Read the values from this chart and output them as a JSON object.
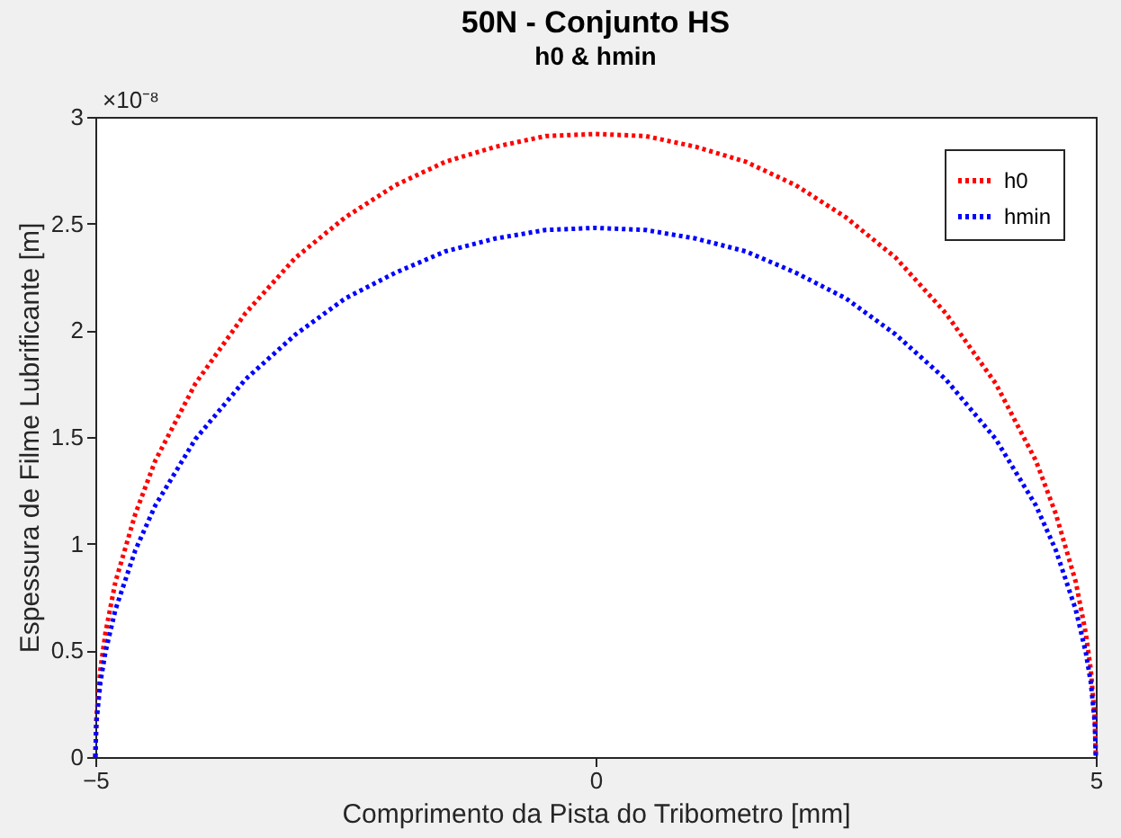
{
  "chart_data": {
    "type": "line",
    "title": "50N - Conjunto HS",
    "subtitle": "h0 & hmin",
    "xlabel": "Comprimento da Pista do Tribometro [mm]",
    "ylabel": "Espessura de Filme Lubrificante [m]",
    "annotations": [
      "×10⁻⁸"
    ],
    "x": [
      -5,
      -4.99,
      -4.95,
      -4.9,
      -4.8,
      -4.6,
      -4.4,
      -4,
      -3.5,
      -3,
      -2.5,
      -2,
      -1.5,
      -1,
      -0.5,
      0,
      0.5,
      1,
      1.5,
      2,
      2.5,
      3,
      3.5,
      4,
      4.4,
      4.6,
      4.8,
      4.9,
      4.95,
      4.99,
      5
    ],
    "series": [
      {
        "name": "h0",
        "color": "#ff0000",
        "values": [
          0,
          0.18,
          0.41,
          0.58,
          0.82,
          1.14,
          1.39,
          1.75,
          2.08,
          2.34,
          2.53,
          2.68,
          2.79,
          2.86,
          2.91,
          2.92,
          2.91,
          2.86,
          2.79,
          2.68,
          2.53,
          2.34,
          2.08,
          1.75,
          1.39,
          1.14,
          0.82,
          0.58,
          0.41,
          0.18,
          0
        ]
      },
      {
        "name": "hmin",
        "color": "#0000ff",
        "values": [
          0,
          0.16,
          0.35,
          0.49,
          0.69,
          0.97,
          1.18,
          1.49,
          1.77,
          1.98,
          2.15,
          2.27,
          2.37,
          2.43,
          2.47,
          2.48,
          2.47,
          2.43,
          2.37,
          2.27,
          2.15,
          1.98,
          1.77,
          1.49,
          1.18,
          0.97,
          0.69,
          0.49,
          0.35,
          0.16,
          0
        ]
      }
    ],
    "xlim": [
      -5,
      5
    ],
    "xticks": [
      -5,
      0,
      5
    ],
    "ylim": [
      0,
      3
    ],
    "yticks": [
      0,
      0.5,
      1,
      1.5,
      2,
      2.5,
      3
    ],
    "grid": false,
    "legend": "top right",
    "line_style": "dotted",
    "marker": "none"
  }
}
